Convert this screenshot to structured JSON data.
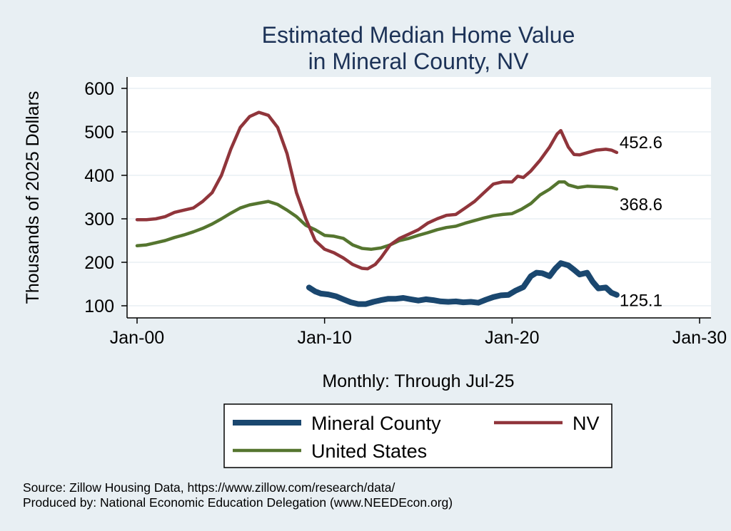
{
  "chart_data": {
    "type": "line",
    "title": [
      "Estimated Median Home Value",
      "in Mineral County, NV"
    ],
    "ylabel": "Thousands of 2025 Dollars",
    "xlabel": "Monthly: Through Jul-25",
    "x_ticks": [
      {
        "label": "Jan-00",
        "year": 2000
      },
      {
        "label": "Jan-10",
        "year": 2010
      },
      {
        "label": "Jan-20",
        "year": 2020
      },
      {
        "label": "Jan-30",
        "year": 2030
      }
    ],
    "y_ticks": [
      100,
      200,
      300,
      400,
      500,
      600
    ],
    "xlim": [
      2000,
      2030
    ],
    "ylim": [
      100,
      600
    ],
    "grid": true,
    "legend_position": "bottom",
    "series": [
      {
        "name": "Mineral County",
        "color": "#1a476f",
        "end_label": "125.1",
        "points": [
          [
            2009.17,
            142
          ],
          [
            2009.5,
            133
          ],
          [
            2009.8,
            128
          ],
          [
            2010.2,
            126
          ],
          [
            2010.6,
            122
          ],
          [
            2011.0,
            115
          ],
          [
            2011.4,
            108
          ],
          [
            2011.8,
            104
          ],
          [
            2012.2,
            104
          ],
          [
            2012.6,
            109
          ],
          [
            2013.0,
            113
          ],
          [
            2013.4,
            116
          ],
          [
            2013.8,
            116
          ],
          [
            2014.2,
            118
          ],
          [
            2014.6,
            115
          ],
          [
            2015.0,
            112
          ],
          [
            2015.4,
            115
          ],
          [
            2015.8,
            113
          ],
          [
            2016.2,
            110
          ],
          [
            2016.6,
            109
          ],
          [
            2017.0,
            110
          ],
          [
            2017.4,
            108
          ],
          [
            2017.8,
            109
          ],
          [
            2018.2,
            107
          ],
          [
            2018.6,
            114
          ],
          [
            2019.0,
            120
          ],
          [
            2019.4,
            124
          ],
          [
            2019.8,
            125
          ],
          [
            2020.2,
            135
          ],
          [
            2020.6,
            143
          ],
          [
            2021.0,
            168
          ],
          [
            2021.3,
            176
          ],
          [
            2021.6,
            175
          ],
          [
            2022.0,
            168
          ],
          [
            2022.3,
            185
          ],
          [
            2022.6,
            198
          ],
          [
            2023.0,
            193
          ],
          [
            2023.3,
            183
          ],
          [
            2023.6,
            172
          ],
          [
            2024.0,
            176
          ],
          [
            2024.3,
            155
          ],
          [
            2024.6,
            140
          ],
          [
            2025.0,
            142
          ],
          [
            2025.3,
            130
          ],
          [
            2025.58,
            125.1
          ]
        ]
      },
      {
        "name": "NV",
        "color": "#90353b",
        "end_label": "452.6",
        "points": [
          [
            2000.0,
            298
          ],
          [
            2000.5,
            298
          ],
          [
            2001.0,
            300
          ],
          [
            2001.5,
            305
          ],
          [
            2002.0,
            315
          ],
          [
            2002.5,
            320
          ],
          [
            2003.0,
            325
          ],
          [
            2003.5,
            340
          ],
          [
            2004.0,
            360
          ],
          [
            2004.5,
            400
          ],
          [
            2005.0,
            460
          ],
          [
            2005.5,
            510
          ],
          [
            2006.0,
            535
          ],
          [
            2006.5,
            545
          ],
          [
            2007.0,
            538
          ],
          [
            2007.5,
            510
          ],
          [
            2008.0,
            450
          ],
          [
            2008.5,
            360
          ],
          [
            2009.0,
            300
          ],
          [
            2009.5,
            250
          ],
          [
            2010.0,
            230
          ],
          [
            2010.5,
            222
          ],
          [
            2011.0,
            210
          ],
          [
            2011.5,
            195
          ],
          [
            2012.0,
            186
          ],
          [
            2012.3,
            185
          ],
          [
            2012.7,
            195
          ],
          [
            2013.0,
            210
          ],
          [
            2013.5,
            240
          ],
          [
            2014.0,
            255
          ],
          [
            2014.5,
            265
          ],
          [
            2015.0,
            275
          ],
          [
            2015.5,
            290
          ],
          [
            2016.0,
            300
          ],
          [
            2016.5,
            308
          ],
          [
            2017.0,
            310
          ],
          [
            2017.5,
            325
          ],
          [
            2018.0,
            340
          ],
          [
            2018.5,
            360
          ],
          [
            2019.0,
            380
          ],
          [
            2019.5,
            385
          ],
          [
            2020.0,
            385
          ],
          [
            2020.3,
            398
          ],
          [
            2020.6,
            395
          ],
          [
            2021.0,
            410
          ],
          [
            2021.5,
            435
          ],
          [
            2022.0,
            465
          ],
          [
            2022.4,
            495
          ],
          [
            2022.6,
            503
          ],
          [
            2023.0,
            465
          ],
          [
            2023.3,
            448
          ],
          [
            2023.6,
            447
          ],
          [
            2024.0,
            452
          ],
          [
            2024.5,
            458
          ],
          [
            2025.0,
            460
          ],
          [
            2025.3,
            458
          ],
          [
            2025.58,
            452.6
          ]
        ]
      },
      {
        "name": "United States",
        "color": "#55752f",
        "end_label": "368.6",
        "points": [
          [
            2000.0,
            238
          ],
          [
            2000.5,
            240
          ],
          [
            2001.0,
            245
          ],
          [
            2001.5,
            250
          ],
          [
            2002.0,
            257
          ],
          [
            2002.5,
            263
          ],
          [
            2003.0,
            270
          ],
          [
            2003.5,
            278
          ],
          [
            2004.0,
            288
          ],
          [
            2004.5,
            300
          ],
          [
            2005.0,
            313
          ],
          [
            2005.5,
            325
          ],
          [
            2006.0,
            332
          ],
          [
            2006.5,
            336
          ],
          [
            2007.0,
            340
          ],
          [
            2007.5,
            333
          ],
          [
            2008.0,
            320
          ],
          [
            2008.5,
            305
          ],
          [
            2009.0,
            285
          ],
          [
            2009.5,
            275
          ],
          [
            2010.0,
            262
          ],
          [
            2010.5,
            260
          ],
          [
            2011.0,
            255
          ],
          [
            2011.5,
            240
          ],
          [
            2012.0,
            232
          ],
          [
            2012.5,
            230
          ],
          [
            2013.0,
            233
          ],
          [
            2013.5,
            240
          ],
          [
            2014.0,
            250
          ],
          [
            2014.5,
            255
          ],
          [
            2015.0,
            262
          ],
          [
            2015.5,
            268
          ],
          [
            2016.0,
            275
          ],
          [
            2016.5,
            280
          ],
          [
            2017.0,
            283
          ],
          [
            2017.5,
            290
          ],
          [
            2018.0,
            296
          ],
          [
            2018.5,
            302
          ],
          [
            2019.0,
            307
          ],
          [
            2019.5,
            310
          ],
          [
            2020.0,
            312
          ],
          [
            2020.5,
            322
          ],
          [
            2021.0,
            335
          ],
          [
            2021.5,
            355
          ],
          [
            2022.0,
            368
          ],
          [
            2022.5,
            385
          ],
          [
            2022.8,
            385
          ],
          [
            2023.0,
            378
          ],
          [
            2023.5,
            372
          ],
          [
            2024.0,
            375
          ],
          [
            2024.5,
            374
          ],
          [
            2025.0,
            373
          ],
          [
            2025.3,
            372
          ],
          [
            2025.58,
            368.6
          ]
        ]
      }
    ]
  },
  "source": {
    "line1": "Source: Zillow Housing Data, https://www.zillow.com/research/data/",
    "line2": "Produced by: National Economic Education Delegation (www.NEEDEcon.org)"
  }
}
